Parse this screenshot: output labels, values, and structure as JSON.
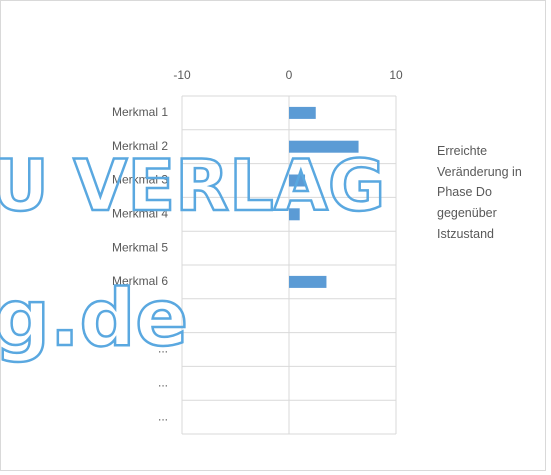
{
  "chart_data": {
    "type": "barh",
    "categories": [
      "Merkmal 1",
      "Merkmal 2",
      "Merkmal 3",
      "Merkmal 4",
      "Merkmal 5",
      "Merkmal 6",
      "...",
      "...",
      "...",
      "..."
    ],
    "series": [
      {
        "name": "Erreichte Veränderung in Phase Do gegenüber Istzustand",
        "color": "#5b9bd5",
        "values": [
          2.5,
          6.5,
          1.5,
          1,
          0,
          3.5,
          null,
          null,
          null,
          null
        ]
      }
    ],
    "xlim": [
      -10,
      10
    ],
    "xticks": [
      -10,
      0,
      10
    ],
    "grid": true,
    "legend": "right",
    "watermark": [
      "U VERLAG",
      "g.de"
    ]
  }
}
